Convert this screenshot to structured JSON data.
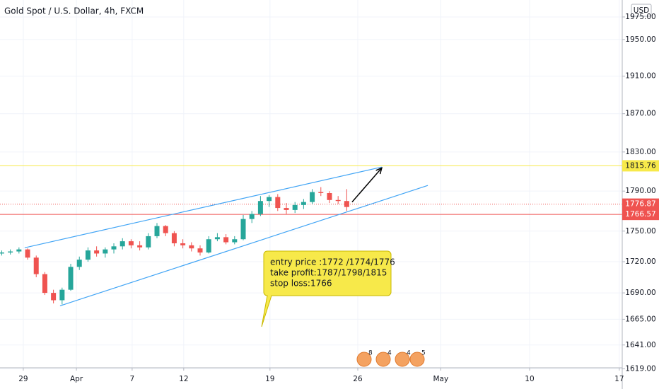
{
  "chart_data": {
    "type": "candlestick",
    "title": "Gold Spot / U.S. Dollar, 4h, FXCM",
    "currency": "USD",
    "log_scale": true,
    "grid": true,
    "up_color": "#26a69a",
    "down_color": "#ef5350",
    "x": [
      -1.25,
      -0.75,
      -0.25,
      0.25,
      0.75,
      1.25,
      1.75,
      2.25,
      2.75,
      3.25,
      3.75,
      4.25,
      4.75,
      5.25,
      5.75,
      6.25,
      6.75,
      7.25,
      7.75,
      8.25,
      8.75,
      9.25,
      9.75,
      10.25,
      10.75,
      11.25,
      11.75,
      12.25,
      12.75,
      13.25,
      13.75,
      14.25,
      14.75,
      15.25,
      15.75,
      16.25,
      16.75,
      17.25,
      17.75,
      18.25,
      18.75
    ],
    "open": [
      1728,
      1729,
      1730,
      1732,
      1724,
      1708,
      1690,
      1683,
      1693,
      1715,
      1722,
      1731,
      1728,
      1732,
      1735,
      1740,
      1736,
      1734,
      1745,
      1755,
      1748,
      1738,
      1736,
      1733,
      1729,
      1742,
      1744,
      1739,
      1742,
      1762,
      1767,
      1780,
      1784,
      1773,
      1771,
      1776,
      1779,
      1789,
      1788,
      1781,
      1780
    ],
    "high": [
      1731,
      1732,
      1734,
      1733,
      1726,
      1710,
      1693,
      1695,
      1718,
      1725,
      1734,
      1735,
      1734,
      1738,
      1743,
      1742,
      1740,
      1748,
      1758,
      1756,
      1750,
      1742,
      1739,
      1736,
      1745,
      1748,
      1747,
      1745,
      1766,
      1770,
      1785,
      1786,
      1787,
      1778,
      1779,
      1782,
      1792,
      1794,
      1790,
      1785,
      1792
    ],
    "low": [
      1726,
      1727,
      1728,
      1722,
      1705,
      1688,
      1680,
      1679,
      1692,
      1712,
      1720,
      1725,
      1724,
      1728,
      1732,
      1733,
      1731,
      1732,
      1743,
      1745,
      1735,
      1733,
      1730,
      1726,
      1728,
      1740,
      1737,
      1737,
      1741,
      1758,
      1765,
      1774,
      1770,
      1767,
      1768,
      1772,
      1777,
      1785,
      1778,
      1777,
      1770
    ],
    "close": [
      1729,
      1730,
      1732,
      1724,
      1708,
      1690,
      1683,
      1693,
      1715,
      1722,
      1731,
      1728,
      1732,
      1735,
      1740,
      1736,
      1734,
      1745,
      1755,
      1748,
      1738,
      1736,
      1733,
      1729,
      1742,
      1744,
      1739,
      1742,
      1762,
      1767,
      1780,
      1784,
      1773,
      1771,
      1776,
      1779,
      1789,
      1788,
      1781,
      1780,
      1774
    ],
    "xlim": [
      -1.35,
      34.72
    ],
    "xticks": [
      {
        "value": 0,
        "label": "29"
      },
      {
        "value": 3.08,
        "label": "Apr"
      },
      {
        "value": 6.31,
        "label": "7"
      },
      {
        "value": 9.3,
        "label": "12"
      },
      {
        "value": 14.3,
        "label": "19"
      },
      {
        "value": 19.39,
        "label": "26"
      },
      {
        "value": 24.2,
        "label": "May"
      },
      {
        "value": 29.35,
        "label": "10"
      },
      {
        "value": 34.55,
        "label": "17"
      }
    ],
    "ylim": [
      1620,
      1994
    ],
    "yticks": [
      {
        "value": 1975,
        "label": "1975.00"
      },
      {
        "value": 1950,
        "label": "1950.00"
      },
      {
        "value": 1910,
        "label": "1910.00"
      },
      {
        "value": 1870,
        "label": "1870.00"
      },
      {
        "value": 1830,
        "label": "1830.00"
      },
      {
        "value": 1790,
        "label": "1790.00"
      },
      {
        "value": 1750,
        "label": "1750.00"
      },
      {
        "value": 1720,
        "label": "1720.00"
      },
      {
        "value": 1690,
        "label": "1690.00"
      },
      {
        "value": 1665,
        "label": "1665.00"
      },
      {
        "value": 1641,
        "label": "1641.00"
      },
      {
        "value": 1619,
        "label": "1619.00"
      }
    ],
    "hlines": [
      {
        "value": 1815.76,
        "color": "#f7e94a",
        "text_color": "#131722",
        "dotted": false
      },
      {
        "value": 1776.87,
        "color": "#ef5350",
        "text_color": "#ffffff",
        "dotted": true
      },
      {
        "value": 1766.57,
        "color": "#ef5350",
        "text_color": "#ffffff",
        "dotted": false
      }
    ],
    "trendlines": [
      {
        "x": [
          0.08,
          20.78
        ],
        "y": [
          1733.6,
          1814.5
        ],
        "color": "#42a5f5"
      },
      {
        "x": [
          2.13,
          23.45
        ],
        "y": [
          1677.7,
          1795.7
        ],
        "color": "#42a5f5"
      }
    ],
    "arrow": {
      "x": [
        19.06,
        20.78
      ],
      "y": [
        1779,
        1813.6
      ],
      "color": "#000000"
    },
    "annotation": [
      "entry price :1772 /1774/1776",
      "take profit:1787/1798/1815",
      "stop loss:1766"
    ],
    "events": [
      "8",
      "4",
      "4",
      "5"
    ]
  }
}
